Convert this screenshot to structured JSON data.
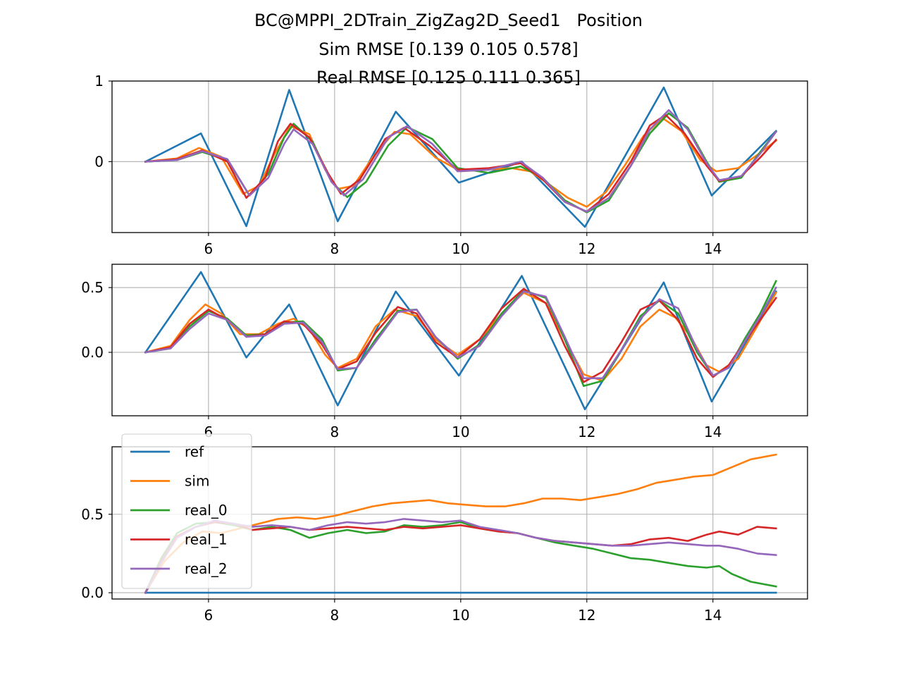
{
  "title": {
    "line1": "BC@MPPI_2DTrain_ZigZag2D_Seed1   Position",
    "line2": "Sim RMSE [0.139 0.105 0.578]",
    "line3": "Real RMSE [0.125 0.111 0.365]"
  },
  "colors": {
    "ref": "#1f77b4",
    "sim": "#ff7f0e",
    "real_0": "#2ca02c",
    "real_1": "#d62728",
    "real_2": "#9467bd",
    "grid": "#b0b0b0"
  },
  "chart_data": [
    {
      "type": "line",
      "title": "",
      "xlabel": "",
      "ylabel": "",
      "xlim": [
        4.47,
        15.5
      ],
      "ylim": [
        -0.88,
        1.0
      ],
      "xticks": [
        6,
        8,
        10,
        12,
        14
      ],
      "xtick_labels": [
        "6",
        "8",
        "10",
        "12",
        "14"
      ],
      "yticks": [
        0,
        1
      ],
      "ytick_labels": [
        "0",
        "1"
      ],
      "grid": true,
      "series": [
        {
          "name": "ref",
          "x": [
            5.0,
            5.88,
            6.6,
            7.28,
            8.05,
            8.97,
            9.97,
            10.97,
            11.97,
            13.22,
            13.98,
            15.0
          ],
          "y": [
            0.0,
            0.35,
            -0.8,
            0.89,
            -0.74,
            0.62,
            -0.26,
            0.0,
            -0.81,
            0.92,
            -0.42,
            0.38
          ]
        },
        {
          "name": "sim",
          "x": [
            5.0,
            5.5,
            5.85,
            6.2,
            6.55,
            6.8,
            7.05,
            7.3,
            7.6,
            7.85,
            8.05,
            8.3,
            8.6,
            8.95,
            9.2,
            9.6,
            10.0,
            10.4,
            10.8,
            11.1,
            11.4,
            11.7,
            12.0,
            12.3,
            12.6,
            12.9,
            13.2,
            13.5,
            13.8,
            14.05,
            14.4,
            14.7,
            15.0
          ],
          "y": [
            0.0,
            0.04,
            0.17,
            0.06,
            -0.4,
            -0.3,
            0.1,
            0.44,
            0.34,
            -0.1,
            -0.34,
            -0.3,
            0.05,
            0.37,
            0.34,
            0.05,
            -0.12,
            -0.1,
            -0.08,
            -0.12,
            -0.28,
            -0.45,
            -0.56,
            -0.38,
            -0.05,
            0.32,
            0.54,
            0.38,
            0.02,
            -0.12,
            -0.08,
            0.08,
            0.26
          ]
        },
        {
          "name": "real_0",
          "x": [
            5.0,
            5.5,
            5.9,
            6.3,
            6.65,
            6.95,
            7.2,
            7.35,
            7.65,
            7.95,
            8.2,
            8.5,
            8.85,
            9.15,
            9.55,
            9.95,
            10.45,
            10.95,
            11.3,
            11.65,
            12.0,
            12.35,
            12.7,
            13.0,
            13.3,
            13.6,
            13.9,
            14.1,
            14.45,
            14.75,
            15.0
          ],
          "y": [
            0.0,
            0.02,
            0.12,
            0.02,
            -0.42,
            -0.15,
            0.3,
            0.47,
            0.25,
            -0.25,
            -0.44,
            -0.25,
            0.2,
            0.43,
            0.28,
            -0.08,
            -0.14,
            -0.06,
            -0.2,
            -0.48,
            -0.63,
            -0.48,
            -0.05,
            0.35,
            0.6,
            0.42,
            0.0,
            -0.25,
            -0.2,
            0.12,
            0.37
          ]
        },
        {
          "name": "real_1",
          "x": [
            5.0,
            5.5,
            5.9,
            6.3,
            6.6,
            6.9,
            7.1,
            7.3,
            7.6,
            7.9,
            8.1,
            8.4,
            8.8,
            9.1,
            9.5,
            9.95,
            10.45,
            10.95,
            11.3,
            11.65,
            12.0,
            12.35,
            12.7,
            13.0,
            13.25,
            13.55,
            13.9,
            14.1,
            14.45,
            14.75,
            15.0
          ],
          "y": [
            0.0,
            0.03,
            0.14,
            0.0,
            -0.45,
            -0.2,
            0.25,
            0.47,
            0.3,
            -0.15,
            -0.4,
            -0.22,
            0.28,
            0.42,
            0.2,
            -0.1,
            -0.08,
            -0.02,
            -0.22,
            -0.5,
            -0.62,
            -0.4,
            0.0,
            0.45,
            0.58,
            0.35,
            -0.05,
            -0.24,
            -0.18,
            0.05,
            0.27
          ]
        },
        {
          "name": "real_2",
          "x": [
            5.0,
            5.5,
            5.9,
            6.3,
            6.65,
            6.95,
            7.2,
            7.35,
            7.65,
            7.95,
            8.15,
            8.45,
            8.85,
            9.15,
            9.55,
            9.95,
            10.45,
            10.95,
            11.3,
            11.65,
            12.0,
            12.35,
            12.7,
            13.0,
            13.3,
            13.6,
            13.9,
            14.1,
            14.45,
            14.75,
            15.0
          ],
          "y": [
            0.0,
            0.02,
            0.13,
            0.03,
            -0.42,
            -0.2,
            0.22,
            0.4,
            0.22,
            -0.25,
            -0.42,
            -0.22,
            0.3,
            0.44,
            0.22,
            -0.12,
            -0.1,
            0.0,
            -0.2,
            -0.5,
            -0.62,
            -0.45,
            -0.05,
            0.4,
            0.64,
            0.4,
            -0.02,
            -0.23,
            -0.18,
            0.1,
            0.37
          ]
        }
      ]
    },
    {
      "type": "line",
      "title": "",
      "xlabel": "",
      "ylabel": "",
      "xlim": [
        4.47,
        15.5
      ],
      "ylim": [
        -0.49,
        0.68
      ],
      "xticks": [
        6,
        8,
        10,
        12,
        14
      ],
      "xtick_labels": [
        "6",
        "8",
        "10",
        "12",
        "14"
      ],
      "yticks": [
        0.0,
        0.5
      ],
      "ytick_labels": [
        "0.0",
        "0.5"
      ],
      "grid": true,
      "series": [
        {
          "name": "ref",
          "x": [
            5.0,
            5.88,
            6.6,
            7.28,
            8.05,
            8.97,
            9.97,
            10.97,
            11.97,
            13.22,
            13.98,
            15.0
          ],
          "y": [
            0.0,
            0.62,
            -0.04,
            0.37,
            -0.41,
            0.47,
            -0.18,
            0.59,
            -0.44,
            0.54,
            -0.38,
            0.47
          ]
        },
        {
          "name": "sim",
          "x": [
            5.0,
            5.4,
            5.7,
            5.95,
            6.2,
            6.5,
            6.8,
            7.1,
            7.35,
            7.6,
            7.85,
            8.05,
            8.35,
            8.65,
            8.95,
            9.3,
            9.6,
            9.95,
            10.3,
            10.65,
            11.0,
            11.35,
            11.65,
            11.95,
            12.25,
            12.55,
            12.85,
            13.15,
            13.4,
            13.65,
            13.9,
            14.1,
            14.4,
            14.7,
            15.0
          ],
          "y": [
            0.0,
            0.05,
            0.25,
            0.37,
            0.3,
            0.14,
            0.14,
            0.22,
            0.26,
            0.18,
            -0.02,
            -0.12,
            -0.05,
            0.2,
            0.33,
            0.28,
            0.1,
            -0.02,
            0.1,
            0.3,
            0.46,
            0.38,
            0.1,
            -0.17,
            -0.22,
            -0.05,
            0.2,
            0.33,
            0.27,
            0.12,
            -0.1,
            -0.15,
            -0.05,
            0.2,
            0.46
          ]
        },
        {
          "name": "real_0",
          "x": [
            5.0,
            5.4,
            5.7,
            6.0,
            6.3,
            6.6,
            6.9,
            7.2,
            7.5,
            7.8,
            8.05,
            8.35,
            8.65,
            9.0,
            9.3,
            9.6,
            9.95,
            10.3,
            10.65,
            11.0,
            11.35,
            11.65,
            11.95,
            12.25,
            12.55,
            12.85,
            13.15,
            13.45,
            13.75,
            14.0,
            14.25,
            14.5,
            14.75,
            15.0
          ],
          "y": [
            0.0,
            0.03,
            0.2,
            0.32,
            0.26,
            0.13,
            0.14,
            0.23,
            0.24,
            0.1,
            -0.14,
            -0.12,
            0.1,
            0.32,
            0.33,
            0.12,
            -0.05,
            0.06,
            0.3,
            0.48,
            0.42,
            0.1,
            -0.26,
            -0.22,
            0.02,
            0.28,
            0.4,
            0.3,
            0.0,
            -0.18,
            -0.12,
            0.1,
            0.3,
            0.55
          ]
        },
        {
          "name": "real_1",
          "x": [
            5.0,
            5.4,
            5.7,
            6.0,
            6.3,
            6.6,
            6.9,
            7.2,
            7.5,
            7.8,
            8.05,
            8.35,
            8.65,
            9.0,
            9.3,
            9.6,
            9.95,
            10.3,
            10.65,
            11.0,
            11.35,
            11.65,
            11.95,
            12.25,
            12.55,
            12.85,
            13.15,
            13.45,
            13.75,
            14.0,
            14.25,
            14.5,
            14.75,
            15.0
          ],
          "y": [
            0.0,
            0.04,
            0.22,
            0.33,
            0.25,
            0.12,
            0.14,
            0.24,
            0.22,
            0.06,
            -0.13,
            -0.07,
            0.15,
            0.35,
            0.3,
            0.08,
            -0.04,
            0.1,
            0.34,
            0.49,
            0.38,
            0.05,
            -0.23,
            -0.15,
            0.08,
            0.33,
            0.4,
            0.25,
            -0.05,
            -0.19,
            -0.1,
            0.08,
            0.25,
            0.42
          ]
        },
        {
          "name": "real_2",
          "x": [
            5.0,
            5.4,
            5.7,
            6.0,
            6.3,
            6.6,
            6.9,
            7.2,
            7.5,
            7.8,
            8.05,
            8.35,
            8.65,
            9.0,
            9.3,
            9.6,
            9.95,
            10.3,
            10.65,
            11.0,
            11.35,
            11.65,
            11.95,
            12.25,
            12.55,
            12.85,
            13.15,
            13.45,
            13.75,
            14.0,
            14.25,
            14.5,
            14.75,
            15.0
          ],
          "y": [
            0.0,
            0.03,
            0.18,
            0.3,
            0.25,
            0.12,
            0.13,
            0.22,
            0.23,
            0.08,
            -0.13,
            -0.12,
            0.08,
            0.31,
            0.33,
            0.12,
            -0.04,
            0.05,
            0.28,
            0.47,
            0.43,
            0.12,
            -0.2,
            -0.2,
            0.02,
            0.26,
            0.41,
            0.34,
            0.02,
            -0.18,
            -0.12,
            0.08,
            0.28,
            0.5
          ]
        }
      ]
    },
    {
      "type": "line",
      "title": "",
      "xlabel": "",
      "ylabel": "",
      "xlim": [
        4.47,
        15.5
      ],
      "ylim": [
        -0.04,
        0.93
      ],
      "xticks": [
        6,
        8,
        10,
        12,
        14
      ],
      "xtick_labels": [
        "6",
        "8",
        "10",
        "12",
        "14"
      ],
      "yticks": [
        0.0,
        0.5
      ],
      "ytick_labels": [
        "0.0",
        "0.5"
      ],
      "grid": true,
      "legend": {
        "placement": "upper-left",
        "entries": [
          "ref",
          "sim",
          "real_0",
          "real_1",
          "real_2"
        ]
      },
      "series": [
        {
          "name": "ref",
          "x": [
            5.0,
            15.0
          ],
          "y": [
            0.0,
            0.0
          ]
        },
        {
          "name": "sim",
          "x": [
            5.0,
            5.3,
            5.6,
            5.9,
            6.2,
            6.5,
            6.8,
            7.1,
            7.4,
            7.7,
            8.0,
            8.3,
            8.6,
            8.9,
            9.2,
            9.5,
            9.8,
            10.1,
            10.4,
            10.7,
            11.0,
            11.3,
            11.6,
            11.9,
            12.2,
            12.5,
            12.8,
            13.1,
            13.4,
            13.7,
            14.0,
            14.3,
            14.6,
            15.0
          ],
          "y": [
            0.0,
            0.2,
            0.32,
            0.39,
            0.38,
            0.41,
            0.44,
            0.47,
            0.48,
            0.47,
            0.49,
            0.52,
            0.55,
            0.57,
            0.58,
            0.59,
            0.57,
            0.56,
            0.55,
            0.55,
            0.57,
            0.6,
            0.6,
            0.59,
            0.61,
            0.63,
            0.66,
            0.7,
            0.72,
            0.74,
            0.75,
            0.8,
            0.85,
            0.88
          ]
        },
        {
          "name": "real_0",
          "x": [
            5.0,
            5.25,
            5.5,
            5.8,
            6.1,
            6.4,
            6.7,
            7.0,
            7.3,
            7.6,
            7.9,
            8.2,
            8.5,
            8.8,
            9.1,
            9.4,
            9.7,
            10.0,
            10.3,
            10.6,
            10.9,
            11.2,
            11.5,
            11.8,
            12.1,
            12.4,
            12.7,
            13.0,
            13.3,
            13.6,
            13.9,
            14.1,
            14.3,
            14.6,
            15.0
          ],
          "y": [
            0.0,
            0.22,
            0.38,
            0.44,
            0.45,
            0.43,
            0.4,
            0.42,
            0.4,
            0.35,
            0.38,
            0.4,
            0.38,
            0.39,
            0.43,
            0.42,
            0.43,
            0.45,
            0.41,
            0.39,
            0.38,
            0.35,
            0.32,
            0.3,
            0.28,
            0.25,
            0.22,
            0.21,
            0.19,
            0.17,
            0.16,
            0.17,
            0.12,
            0.07,
            0.04
          ]
        },
        {
          "name": "real_1",
          "x": [
            5.0,
            5.25,
            5.5,
            5.8,
            6.1,
            6.4,
            6.7,
            7.0,
            7.3,
            7.6,
            7.9,
            8.2,
            8.5,
            8.8,
            9.1,
            9.4,
            9.7,
            10.0,
            10.3,
            10.6,
            10.9,
            11.2,
            11.5,
            11.8,
            12.1,
            12.4,
            12.7,
            13.0,
            13.3,
            13.6,
            13.9,
            14.1,
            14.4,
            14.7,
            15.0
          ],
          "y": [
            0.0,
            0.2,
            0.36,
            0.42,
            0.45,
            0.44,
            0.4,
            0.41,
            0.42,
            0.4,
            0.41,
            0.42,
            0.41,
            0.4,
            0.42,
            0.41,
            0.42,
            0.43,
            0.41,
            0.39,
            0.38,
            0.35,
            0.33,
            0.32,
            0.31,
            0.3,
            0.31,
            0.34,
            0.35,
            0.33,
            0.37,
            0.39,
            0.37,
            0.42,
            0.41
          ]
        },
        {
          "name": "real_2",
          "x": [
            5.0,
            5.25,
            5.5,
            5.8,
            6.1,
            6.4,
            6.7,
            7.0,
            7.3,
            7.6,
            7.9,
            8.2,
            8.5,
            8.8,
            9.1,
            9.4,
            9.7,
            10.0,
            10.3,
            10.6,
            10.9,
            11.2,
            11.5,
            11.8,
            12.1,
            12.4,
            12.7,
            13.0,
            13.3,
            13.6,
            13.9,
            14.1,
            14.4,
            14.7,
            15.0
          ],
          "y": [
            0.0,
            0.19,
            0.35,
            0.42,
            0.46,
            0.44,
            0.42,
            0.43,
            0.42,
            0.4,
            0.43,
            0.45,
            0.44,
            0.45,
            0.47,
            0.46,
            0.45,
            0.46,
            0.42,
            0.4,
            0.38,
            0.35,
            0.33,
            0.32,
            0.31,
            0.3,
            0.3,
            0.31,
            0.32,
            0.31,
            0.3,
            0.3,
            0.28,
            0.25,
            0.24
          ]
        }
      ]
    }
  ]
}
